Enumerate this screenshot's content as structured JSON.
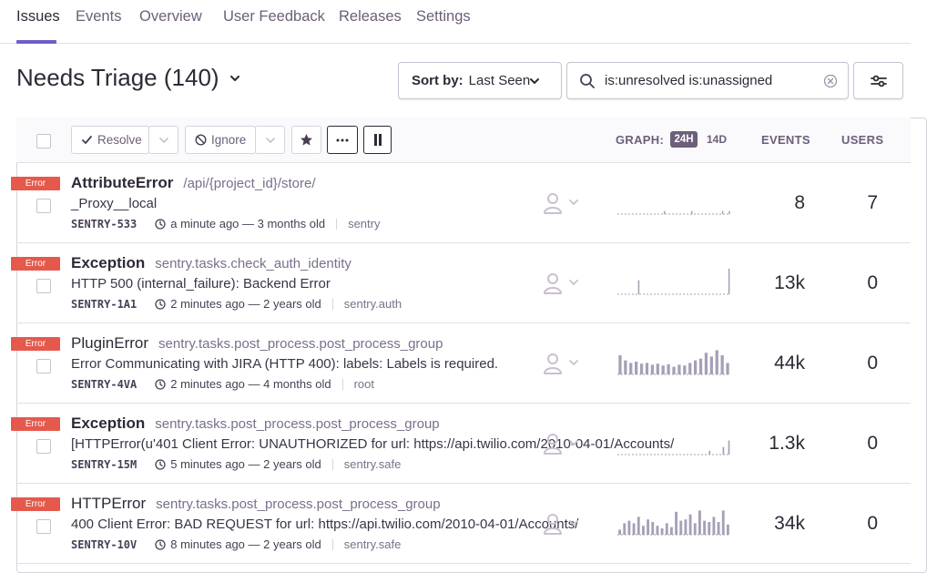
{
  "nav": {
    "tabs": [
      "Issues",
      "Events",
      "Overview",
      "User Feedback",
      "Releases",
      "Settings"
    ],
    "active_tab": "Issues"
  },
  "header": {
    "title": "Needs Triage (140)",
    "sort_prefix": "Sort by:",
    "sort_value": "Last Seen",
    "search_query": "is:unresolved is:unassigned"
  },
  "toolbar": {
    "resolve_label": "Resolve",
    "ignore_label": "Ignore",
    "graph_label": "GRAPH:",
    "range_24h": "24H",
    "range_14d": "14D",
    "events_label": "EVENTS",
    "users_label": "USERS"
  },
  "colors": {
    "accent": "#6c5fc7",
    "error_badge": "#e5594c",
    "text": "#2f2936",
    "muted": "#7c6f8a",
    "spark": "#a79fb6"
  },
  "issues": [
    {
      "level": "Error",
      "type": "AttributeError",
      "bold": true,
      "location": "/api/{project_id}/store/",
      "message": "_Proxy__local",
      "short_id": "SENTRY-533",
      "time": "a minute ago — 3 months old",
      "logger": "sentry",
      "events": "8",
      "users": "7",
      "spark": [
        0,
        0,
        0,
        0,
        0,
        0,
        0,
        0,
        0,
        0,
        0,
        0,
        0,
        0,
        0,
        0,
        0,
        0,
        0,
        0,
        0,
        0,
        0,
        0,
        0,
        0,
        0,
        0.12,
        0,
        0,
        0,
        0,
        0,
        0,
        0,
        0,
        0,
        0,
        0,
        0,
        0,
        0,
        0,
        0.12,
        0,
        0,
        0,
        0,
        0,
        0,
        0,
        0,
        0,
        0,
        0,
        0,
        0,
        0,
        0,
        0,
        0,
        0.12,
        0,
        0,
        0,
        0.12
      ]
    },
    {
      "level": "Error",
      "type": "Exception",
      "bold": true,
      "location": "sentry.tasks.check_auth_identity",
      "message": "HTTP 500 (internal_failure): Backend Error",
      "short_id": "SENTRY-1A1",
      "time": "2 minutes ago — 2 years old",
      "logger": "sentry.auth",
      "events": "13k",
      "users": "0",
      "spark": [
        0,
        0,
        0,
        0,
        0,
        0,
        0,
        0,
        0.55,
        0,
        0,
        0,
        0,
        0,
        0,
        0,
        0,
        0,
        0,
        0,
        0,
        0,
        0,
        0,
        0,
        0,
        0,
        0,
        0,
        0,
        0,
        0,
        0,
        0,
        0,
        0,
        0,
        0,
        0,
        0,
        0,
        0,
        0,
        0,
        1
      ]
    },
    {
      "level": "Error",
      "type": "PluginError",
      "bold": false,
      "location": "sentry.tasks.post_process.post_process_group",
      "message": "Error Communicating with JIRA (HTTP 400): labels: Labels is required.",
      "short_id": "SENTRY-4VA",
      "time": "2 minutes ago — 4 months old",
      "logger": "root",
      "events": "44k",
      "users": "0",
      "spark": [
        0.75,
        0.55,
        0.45,
        0.5,
        0.42,
        0.45,
        0.38,
        0.42,
        0.35,
        0.4,
        0.3,
        0.38,
        0.35,
        0.45,
        0.55,
        0.62,
        0.85,
        0.7,
        0.95,
        0.75,
        0.45
      ]
    },
    {
      "level": "Error",
      "type": "Exception",
      "bold": true,
      "location": "sentry.tasks.post_process.post_process_group",
      "message": "[HTTPError(u'401 Client Error: UNAUTHORIZED for url: https://api.twilio.com/2010-04-01/Accounts/",
      "short_id": "SENTRY-15M",
      "time": "5 minutes ago — 2 years old",
      "logger": "sentry.safe",
      "events": "1.3k",
      "users": "0",
      "spark": [
        0,
        0,
        0,
        0,
        0,
        0,
        0,
        0,
        0,
        0,
        0,
        0,
        0,
        0,
        0,
        0,
        0,
        0,
        0,
        0,
        0,
        0,
        0,
        0,
        0,
        0,
        0,
        0,
        0,
        0,
        0,
        0,
        0,
        0.15,
        0,
        0,
        0,
        0,
        0.3,
        0,
        0.55
      ]
    },
    {
      "level": "Error",
      "type": "HTTPError",
      "bold": false,
      "location": "sentry.tasks.post_process.post_process_group",
      "message": "400 Client Error: BAD REQUEST for url: https://api.twilio.com/2010-04-01/Accounts/",
      "short_id": "SENTRY-10V",
      "time": "8 minutes ago — 2 years old",
      "logger": "sentry.safe",
      "events": "34k",
      "users": "0",
      "spark": [
        0.2,
        0.45,
        0.55,
        0.45,
        0.7,
        0.35,
        0.6,
        0.5,
        0.35,
        0.25,
        0.45,
        0.3,
        0.9,
        0.55,
        0.6,
        0.8,
        0.45,
        0.95,
        0.55,
        0.5,
        0.7,
        0.5,
        0.95,
        0.4
      ]
    }
  ]
}
